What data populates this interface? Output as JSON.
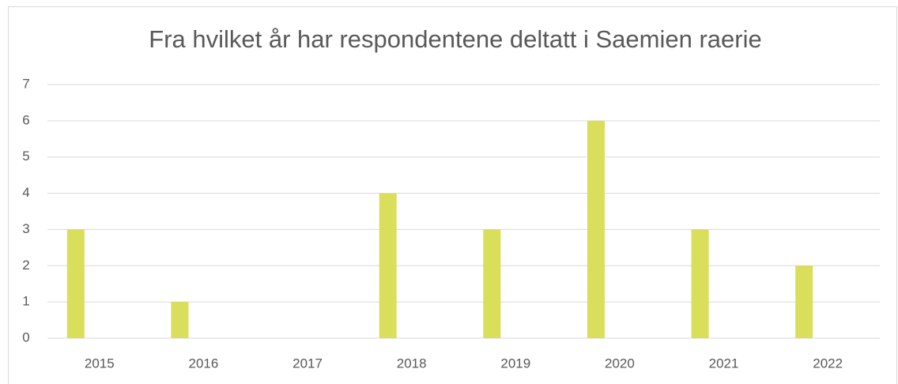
{
  "chart_data": {
    "type": "bar",
    "title": "Fra hvilket år har respondentene deltatt i Saemien raerie",
    "categories": [
      "2015",
      "2016",
      "2017",
      "2018",
      "2019",
      "2020",
      "2021",
      "2022"
    ],
    "values": [
      3,
      1,
      0,
      4,
      3,
      6,
      3,
      2
    ],
    "color": "#d9de5b",
    "ylim": [
      0,
      7
    ],
    "yticks": [
      0,
      1,
      2,
      3,
      4,
      5,
      6,
      7
    ],
    "grid": true
  }
}
